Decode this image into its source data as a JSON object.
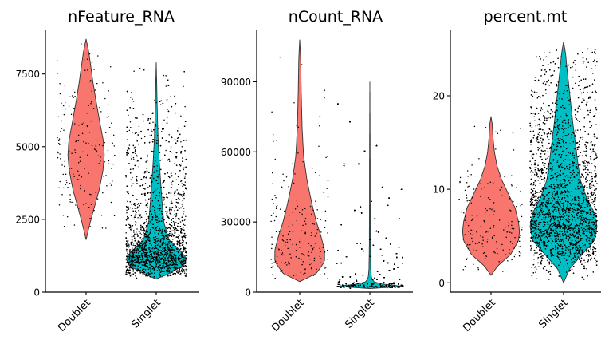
{
  "chart_data": [
    {
      "type": "violin",
      "title": "nFeature_RNA",
      "categories": [
        "Doublet",
        "Singlet"
      ],
      "colors": {
        "Doublet": "#F8766D",
        "Singlet": "#00BFC4"
      },
      "ylim": [
        0,
        9000
      ],
      "yticks": [
        0,
        2500,
        5000,
        7500
      ],
      "ytick_labels": [
        "0",
        "2500",
        "5000",
        "7500"
      ],
      "series": [
        {
          "category": "Doublet",
          "min": 1800,
          "max": 8700,
          "peak": 4500,
          "profile": [
            [
              1800,
              0.0
            ],
            [
              2200,
              0.09
            ],
            [
              2800,
              0.24
            ],
            [
              3500,
              0.43
            ],
            [
              4200,
              0.56
            ],
            [
              4700,
              0.6
            ],
            [
              5200,
              0.57
            ],
            [
              5800,
              0.46
            ],
            [
              6500,
              0.34
            ],
            [
              7200,
              0.23
            ],
            [
              7800,
              0.15
            ],
            [
              8300,
              0.08
            ],
            [
              8700,
              0.0
            ]
          ]
        },
        {
          "category": "Singlet",
          "min": 450,
          "max": 7900,
          "peak": 1150,
          "profile": [
            [
              450,
              0.0
            ],
            [
              650,
              0.45
            ],
            [
              900,
              0.88
            ],
            [
              1150,
              1.0
            ],
            [
              1400,
              0.82
            ],
            [
              1800,
              0.42
            ],
            [
              2400,
              0.25
            ],
            [
              3000,
              0.2
            ],
            [
              3700,
              0.15
            ],
            [
              4500,
              0.1
            ],
            [
              5300,
              0.06
            ],
            [
              6200,
              0.035
            ],
            [
              7000,
              0.02
            ],
            [
              7900,
              0.0
            ]
          ]
        }
      ]
    },
    {
      "type": "violin",
      "title": "nCount_RNA",
      "categories": [
        "Doublet",
        "Singlet"
      ],
      "colors": {
        "Doublet": "#F8766D",
        "Singlet": "#00BFC4"
      },
      "ylim": [
        0,
        112000
      ],
      "yticks": [
        0,
        30000,
        60000,
        90000
      ],
      "ytick_labels": [
        "0",
        "30000",
        "60000",
        "90000"
      ],
      "series": [
        {
          "category": "Doublet",
          "min": 4500,
          "max": 108000,
          "peak": 18000,
          "profile": [
            [
              4500,
              0.0
            ],
            [
              8000,
              0.55
            ],
            [
              13000,
              0.82
            ],
            [
              18000,
              0.82
            ],
            [
              24000,
              0.7
            ],
            [
              30000,
              0.55
            ],
            [
              38000,
              0.4
            ],
            [
              48000,
              0.24
            ],
            [
              58000,
              0.13
            ],
            [
              70000,
              0.08
            ],
            [
              85000,
              0.05
            ],
            [
              100000,
              0.03
            ],
            [
              108000,
              0.0
            ]
          ]
        },
        {
          "category": "Singlet",
          "min": 1500,
          "max": 90000,
          "peak": 2500,
          "profile": [
            [
              1500,
              0.0
            ],
            [
              2000,
              0.7
            ],
            [
              2500,
              1.0
            ],
            [
              3000,
              0.55
            ],
            [
              4000,
              0.15
            ],
            [
              6000,
              0.05
            ],
            [
              10000,
              0.025
            ],
            [
              20000,
              0.015
            ],
            [
              40000,
              0.01
            ],
            [
              60000,
              0.008
            ],
            [
              90000,
              0.0
            ]
          ]
        }
      ]
    },
    {
      "type": "violin",
      "title": "percent.mt",
      "categories": [
        "Doublet",
        "Singlet"
      ],
      "colors": {
        "Doublet": "#F8766D",
        "Singlet": "#00BFC4"
      },
      "ylim": [
        -1,
        27
      ],
      "yticks": [
        0,
        10,
        20
      ],
      "ytick_labels": [
        "0",
        "10",
        "20"
      ],
      "series": [
        {
          "category": "Doublet",
          "min": 0.8,
          "max": 17.8,
          "peak": 5.5,
          "profile": [
            [
              0.8,
              0.0
            ],
            [
              1.8,
              0.2
            ],
            [
              3.0,
              0.58
            ],
            [
              4.5,
              0.82
            ],
            [
              5.5,
              0.85
            ],
            [
              6.5,
              0.82
            ],
            [
              8.0,
              0.72
            ],
            [
              9.5,
              0.52
            ],
            [
              11.0,
              0.32
            ],
            [
              12.5,
              0.18
            ],
            [
              14.0,
              0.1
            ],
            [
              15.5,
              0.06
            ],
            [
              17.0,
              0.035
            ],
            [
              17.8,
              0.0
            ]
          ]
        },
        {
          "category": "Singlet",
          "min": 0.0,
          "max": 25.8,
          "peak": 6.0,
          "profile": [
            [
              0.0,
              0.0
            ],
            [
              1.5,
              0.18
            ],
            [
              3.0,
              0.55
            ],
            [
              4.5,
              0.92
            ],
            [
              6.0,
              1.0
            ],
            [
              7.5,
              0.92
            ],
            [
              9.0,
              0.7
            ],
            [
              11.0,
              0.5
            ],
            [
              13.0,
              0.42
            ],
            [
              15.0,
              0.35
            ],
            [
              17.0,
              0.28
            ],
            [
              19.0,
              0.22
            ],
            [
              21.0,
              0.16
            ],
            [
              23.0,
              0.1
            ],
            [
              24.5,
              0.06
            ],
            [
              25.8,
              0.0
            ]
          ]
        }
      ]
    }
  ]
}
